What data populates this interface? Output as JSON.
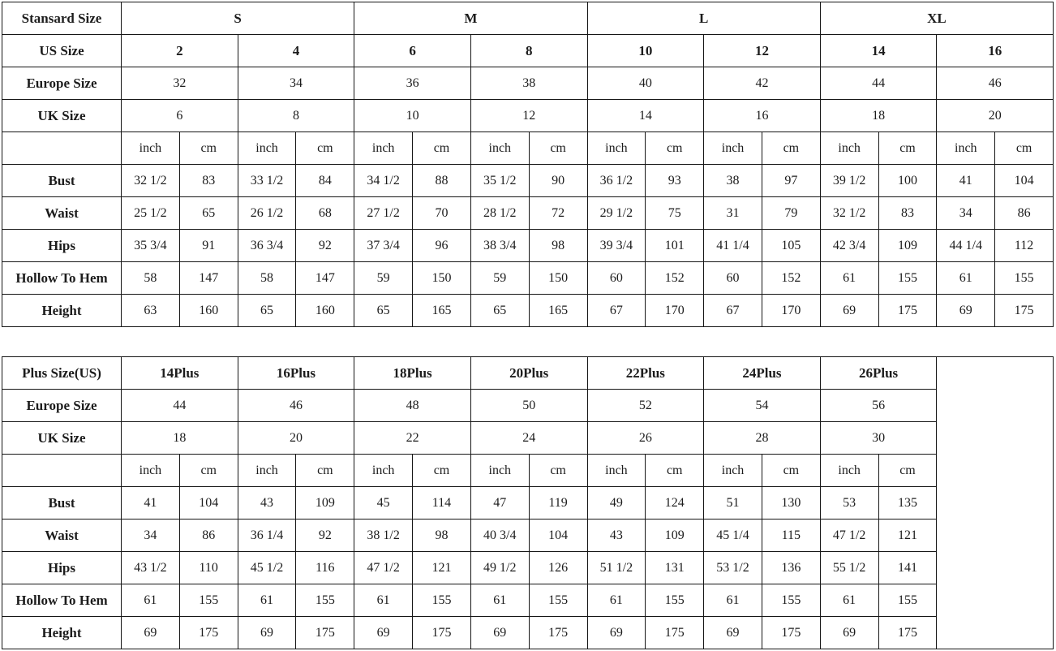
{
  "page": {
    "background_color": "#ffffff",
    "border_color": "#161616",
    "text_color": "#1c1c1c"
  },
  "standard_table": {
    "title": "Stansard Size",
    "rows": [
      {
        "name": "standard-size-row",
        "cells": [
          {
            "t": "Stansard Size",
            "h": 1
          },
          {
            "t": "S",
            "cs": 4,
            "b": 1
          },
          {
            "t": "M",
            "cs": 4,
            "b": 1
          },
          {
            "t": "L",
            "cs": 4,
            "b": 1
          },
          {
            "t": "XL",
            "cs": 4,
            "b": 1
          }
        ]
      },
      {
        "name": "us-size-row",
        "cells": [
          {
            "t": "US Size",
            "h": 1
          },
          {
            "t": "2",
            "cs": 2,
            "b": 1
          },
          {
            "t": "4",
            "cs": 2,
            "b": 1
          },
          {
            "t": "6",
            "cs": 2,
            "b": 1
          },
          {
            "t": "8",
            "cs": 2,
            "b": 1
          },
          {
            "t": "10",
            "cs": 2,
            "b": 1
          },
          {
            "t": "12",
            "cs": 2,
            "b": 1
          },
          {
            "t": "14",
            "cs": 2,
            "b": 1
          },
          {
            "t": "16",
            "cs": 2,
            "b": 1
          }
        ]
      },
      {
        "name": "europe-size-row",
        "cells": [
          {
            "t": "Europe Size",
            "h": 1
          },
          {
            "t": "32",
            "cs": 2
          },
          {
            "t": "34",
            "cs": 2
          },
          {
            "t": "36",
            "cs": 2
          },
          {
            "t": "38",
            "cs": 2
          },
          {
            "t": "40",
            "cs": 2
          },
          {
            "t": "42",
            "cs": 2
          },
          {
            "t": "44",
            "cs": 2
          },
          {
            "t": "46",
            "cs": 2
          }
        ]
      },
      {
        "name": "uk-size-row",
        "cells": [
          {
            "t": "UK Size",
            "h": 1
          },
          {
            "t": "6",
            "cs": 2
          },
          {
            "t": "8",
            "cs": 2
          },
          {
            "t": "10",
            "cs": 2
          },
          {
            "t": "12",
            "cs": 2
          },
          {
            "t": "14",
            "cs": 2
          },
          {
            "t": "16",
            "cs": 2
          },
          {
            "t": "18",
            "cs": 2
          },
          {
            "t": "20",
            "cs": 2
          }
        ]
      },
      {
        "name": "unit-row",
        "cells": [
          {
            "t": "",
            "h": 1
          },
          {
            "t": "inch"
          },
          {
            "t": "cm"
          },
          {
            "t": "inch"
          },
          {
            "t": "cm"
          },
          {
            "t": "inch"
          },
          {
            "t": "cm"
          },
          {
            "t": "inch"
          },
          {
            "t": "cm"
          },
          {
            "t": "inch"
          },
          {
            "t": "cm"
          },
          {
            "t": "inch"
          },
          {
            "t": "cm"
          },
          {
            "t": "inch"
          },
          {
            "t": "cm"
          },
          {
            "t": "inch"
          },
          {
            "t": "cm"
          }
        ]
      },
      {
        "name": "bust-row",
        "cells": [
          {
            "t": "Bust",
            "h": 1
          },
          {
            "t": "32 1/2"
          },
          {
            "t": "83"
          },
          {
            "t": "33 1/2"
          },
          {
            "t": "84"
          },
          {
            "t": "34 1/2"
          },
          {
            "t": "88"
          },
          {
            "t": "35 1/2"
          },
          {
            "t": "90"
          },
          {
            "t": "36 1/2"
          },
          {
            "t": "93"
          },
          {
            "t": "38"
          },
          {
            "t": "97"
          },
          {
            "t": "39 1/2"
          },
          {
            "t": "100"
          },
          {
            "t": "41"
          },
          {
            "t": "104"
          }
        ]
      },
      {
        "name": "waist-row",
        "cells": [
          {
            "t": "Waist",
            "h": 1
          },
          {
            "t": "25 1/2"
          },
          {
            "t": "65"
          },
          {
            "t": "26 1/2"
          },
          {
            "t": "68"
          },
          {
            "t": "27 1/2"
          },
          {
            "t": "70"
          },
          {
            "t": "28 1/2"
          },
          {
            "t": "72"
          },
          {
            "t": "29 1/2"
          },
          {
            "t": "75"
          },
          {
            "t": "31"
          },
          {
            "t": "79"
          },
          {
            "t": "32 1/2"
          },
          {
            "t": "83"
          },
          {
            "t": "34"
          },
          {
            "t": "86"
          }
        ]
      },
      {
        "name": "hips-row",
        "cells": [
          {
            "t": "Hips",
            "h": 1
          },
          {
            "t": "35 3/4"
          },
          {
            "t": "91"
          },
          {
            "t": "36 3/4"
          },
          {
            "t": "92"
          },
          {
            "t": "37 3/4"
          },
          {
            "t": "96"
          },
          {
            "t": "38 3/4"
          },
          {
            "t": "98"
          },
          {
            "t": "39 3/4"
          },
          {
            "t": "101"
          },
          {
            "t": "41 1/4"
          },
          {
            "t": "105"
          },
          {
            "t": "42 3/4"
          },
          {
            "t": "109"
          },
          {
            "t": "44 1/4"
          },
          {
            "t": "112"
          }
        ]
      },
      {
        "name": "hollow-to-hem-row",
        "cells": [
          {
            "t": "Hollow To Hem",
            "h": 1
          },
          {
            "t": "58"
          },
          {
            "t": "147"
          },
          {
            "t": "58"
          },
          {
            "t": "147"
          },
          {
            "t": "59"
          },
          {
            "t": "150"
          },
          {
            "t": "59"
          },
          {
            "t": "150"
          },
          {
            "t": "60"
          },
          {
            "t": "152"
          },
          {
            "t": "60"
          },
          {
            "t": "152"
          },
          {
            "t": "61"
          },
          {
            "t": "155"
          },
          {
            "t": "61"
          },
          {
            "t": "155"
          }
        ]
      },
      {
        "name": "height-row",
        "cells": [
          {
            "t": "Height",
            "h": 1
          },
          {
            "t": "63"
          },
          {
            "t": "160"
          },
          {
            "t": "65"
          },
          {
            "t": "160"
          },
          {
            "t": "65"
          },
          {
            "t": "165"
          },
          {
            "t": "65"
          },
          {
            "t": "165"
          },
          {
            "t": "67"
          },
          {
            "t": "170"
          },
          {
            "t": "67"
          },
          {
            "t": "170"
          },
          {
            "t": "69"
          },
          {
            "t": "175"
          },
          {
            "t": "69"
          },
          {
            "t": "175"
          }
        ]
      }
    ]
  },
  "plus_table": {
    "title": "Plus Size(US)",
    "rows": [
      {
        "name": "plus-size-row",
        "cells": [
          {
            "t": "Plus Size(US)",
            "h": 1
          },
          {
            "t": "14Plus",
            "cs": 2,
            "b": 1
          },
          {
            "t": "16Plus",
            "cs": 2,
            "b": 1
          },
          {
            "t": "18Plus",
            "cs": 2,
            "b": 1
          },
          {
            "t": "20Plus",
            "cs": 2,
            "b": 1
          },
          {
            "t": "22Plus",
            "cs": 2,
            "b": 1
          },
          {
            "t": "24Plus",
            "cs": 2,
            "b": 1
          },
          {
            "t": "26Plus",
            "cs": 2,
            "b": 1
          },
          {
            "t": "",
            "cs": 2,
            "rs": 9,
            "empty": 1
          }
        ]
      },
      {
        "name": "europe-size-row",
        "cells": [
          {
            "t": "Europe Size",
            "h": 1
          },
          {
            "t": "44",
            "cs": 2
          },
          {
            "t": "46",
            "cs": 2
          },
          {
            "t": "48",
            "cs": 2
          },
          {
            "t": "50",
            "cs": 2
          },
          {
            "t": "52",
            "cs": 2
          },
          {
            "t": "54",
            "cs": 2
          },
          {
            "t": "56",
            "cs": 2
          }
        ]
      },
      {
        "name": "uk-size-row",
        "cells": [
          {
            "t": "UK Size",
            "h": 1
          },
          {
            "t": "18",
            "cs": 2
          },
          {
            "t": "20",
            "cs": 2
          },
          {
            "t": "22",
            "cs": 2
          },
          {
            "t": "24",
            "cs": 2
          },
          {
            "t": "26",
            "cs": 2
          },
          {
            "t": "28",
            "cs": 2
          },
          {
            "t": "30",
            "cs": 2
          }
        ]
      },
      {
        "name": "unit-row",
        "cells": [
          {
            "t": "",
            "h": 1
          },
          {
            "t": "inch"
          },
          {
            "t": "cm"
          },
          {
            "t": "inch"
          },
          {
            "t": "cm"
          },
          {
            "t": "inch"
          },
          {
            "t": "cm"
          },
          {
            "t": "inch"
          },
          {
            "t": "cm"
          },
          {
            "t": "inch"
          },
          {
            "t": "cm"
          },
          {
            "t": "inch"
          },
          {
            "t": "cm"
          },
          {
            "t": "inch"
          },
          {
            "t": "cm"
          }
        ]
      },
      {
        "name": "bust-row",
        "cells": [
          {
            "t": "Bust",
            "h": 1
          },
          {
            "t": "41"
          },
          {
            "t": "104"
          },
          {
            "t": "43"
          },
          {
            "t": "109"
          },
          {
            "t": "45"
          },
          {
            "t": "114"
          },
          {
            "t": "47"
          },
          {
            "t": "119"
          },
          {
            "t": "49"
          },
          {
            "t": "124"
          },
          {
            "t": "51"
          },
          {
            "t": "130"
          },
          {
            "t": "53"
          },
          {
            "t": "135"
          }
        ]
      },
      {
        "name": "waist-row",
        "cells": [
          {
            "t": "Waist",
            "h": 1
          },
          {
            "t": "34"
          },
          {
            "t": "86"
          },
          {
            "t": "36 1/4"
          },
          {
            "t": "92"
          },
          {
            "t": "38 1/2"
          },
          {
            "t": "98"
          },
          {
            "t": "40 3/4"
          },
          {
            "t": "104"
          },
          {
            "t": "43"
          },
          {
            "t": "109"
          },
          {
            "t": "45 1/4"
          },
          {
            "t": "115"
          },
          {
            "t": "47 1/2"
          },
          {
            "t": "121"
          }
        ]
      },
      {
        "name": "hips-row",
        "cells": [
          {
            "t": "Hips",
            "h": 1
          },
          {
            "t": "43 1/2"
          },
          {
            "t": "110"
          },
          {
            "t": "45 1/2"
          },
          {
            "t": "116"
          },
          {
            "t": "47 1/2"
          },
          {
            "t": "121"
          },
          {
            "t": "49 1/2"
          },
          {
            "t": "126"
          },
          {
            "t": "51 1/2"
          },
          {
            "t": "131"
          },
          {
            "t": "53 1/2"
          },
          {
            "t": "136"
          },
          {
            "t": "55 1/2"
          },
          {
            "t": "141"
          }
        ]
      },
      {
        "name": "hollow-to-hem-row",
        "cells": [
          {
            "t": "Hollow To Hem",
            "h": 1
          },
          {
            "t": "61"
          },
          {
            "t": "155"
          },
          {
            "t": "61"
          },
          {
            "t": "155"
          },
          {
            "t": "61"
          },
          {
            "t": "155"
          },
          {
            "t": "61"
          },
          {
            "t": "155"
          },
          {
            "t": "61"
          },
          {
            "t": "155"
          },
          {
            "t": "61"
          },
          {
            "t": "155"
          },
          {
            "t": "61"
          },
          {
            "t": "155"
          }
        ]
      },
      {
        "name": "height-row",
        "cells": [
          {
            "t": "Height",
            "h": 1
          },
          {
            "t": "69"
          },
          {
            "t": "175"
          },
          {
            "t": "69"
          },
          {
            "t": "175"
          },
          {
            "t": "69"
          },
          {
            "t": "175"
          },
          {
            "t": "69"
          },
          {
            "t": "175"
          },
          {
            "t": "69"
          },
          {
            "t": "175"
          },
          {
            "t": "69"
          },
          {
            "t": "175"
          },
          {
            "t": "69"
          },
          {
            "t": "175"
          }
        ]
      }
    ]
  }
}
